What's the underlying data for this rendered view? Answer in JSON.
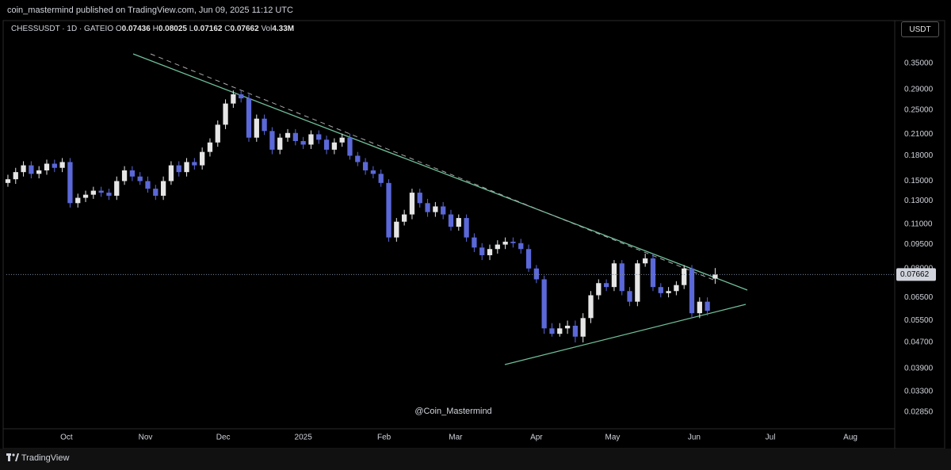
{
  "page": {
    "published": "coin_mastermind published on TradingView.com, Jun 09, 2025 11:12 UTC",
    "currency": "USDT",
    "watermark": "@Coin_Mastermind",
    "brand": "TradingView"
  },
  "chart_data": {
    "type": "candlestick",
    "symbol": "CHESSUSDT · 1D · GATEIO",
    "legend_labels": {
      "open": "O",
      "high": "H",
      "low": "L",
      "close": "C",
      "volume": "Vol"
    },
    "volume": "4.33M",
    "up_color": "#e6e6e6",
    "down_color": "#5b68d8",
    "log_scale": true,
    "grid": false,
    "open": [
      0.148,
      0.152,
      0.16,
      0.168,
      0.158,
      0.162,
      0.17,
      0.165,
      0.172,
      0.128,
      0.133,
      0.136,
      0.14,
      0.138,
      0.135,
      0.15,
      0.162,
      0.155,
      0.15,
      0.142,
      0.135,
      0.15,
      0.168,
      0.16,
      0.172,
      0.168,
      0.185,
      0.198,
      0.225,
      0.262,
      0.28,
      0.272,
      0.205,
      0.235,
      0.215,
      0.188,
      0.205,
      0.212,
      0.2,
      0.195,
      0.21,
      0.202,
      0.188,
      0.198,
      0.205,
      0.18,
      0.172,
      0.162,
      0.158,
      0.148,
      0.1,
      0.112,
      0.118,
      0.138,
      0.128,
      0.12,
      0.125,
      0.118,
      0.108,
      0.115,
      0.1,
      0.093,
      0.088,
      0.092,
      0.095,
      0.097,
      0.096,
      0.092,
      0.08,
      0.074,
      0.052,
      0.05,
      0.052,
      0.053,
      0.049,
      0.056,
      0.066,
      0.072,
      0.07,
      0.083,
      0.068,
      0.063,
      0.083,
      0.086,
      0.07,
      0.067,
      0.068,
      0.071,
      0.08,
      0.058,
      0.063,
      0.07436
    ],
    "high": [
      0.157,
      0.165,
      0.173,
      0.173,
      0.167,
      0.175,
      0.175,
      0.177,
      0.177,
      0.137,
      0.14,
      0.144,
      0.144,
      0.142,
      0.155,
      0.167,
      0.167,
      0.16,
      0.155,
      0.146,
      0.155,
      0.173,
      0.173,
      0.177,
      0.177,
      0.191,
      0.204,
      0.232,
      0.27,
      0.288,
      0.288,
      0.28,
      0.242,
      0.242,
      0.221,
      0.211,
      0.218,
      0.218,
      0.206,
      0.216,
      0.216,
      0.208,
      0.204,
      0.211,
      0.211,
      0.185,
      0.177,
      0.167,
      0.163,
      0.152,
      0.115,
      0.122,
      0.142,
      0.142,
      0.132,
      0.129,
      0.129,
      0.122,
      0.118,
      0.118,
      0.103,
      0.096,
      0.095,
      0.098,
      0.1,
      0.1,
      0.099,
      0.095,
      0.082,
      0.076,
      0.054,
      0.054,
      0.055,
      0.055,
      0.058,
      0.068,
      0.074,
      0.074,
      0.085,
      0.085,
      0.07,
      0.085,
      0.089,
      0.089,
      0.072,
      0.07,
      0.073,
      0.082,
      0.082,
      0.065,
      0.065,
      0.08025
    ],
    "low": [
      0.144,
      0.147,
      0.155,
      0.153,
      0.153,
      0.157,
      0.16,
      0.16,
      0.124,
      0.124,
      0.129,
      0.132,
      0.134,
      0.131,
      0.131,
      0.146,
      0.15,
      0.146,
      0.138,
      0.131,
      0.131,
      0.146,
      0.155,
      0.155,
      0.163,
      0.163,
      0.179,
      0.192,
      0.218,
      0.254,
      0.264,
      0.199,
      0.199,
      0.209,
      0.182,
      0.182,
      0.199,
      0.194,
      0.189,
      0.189,
      0.196,
      0.182,
      0.182,
      0.192,
      0.175,
      0.167,
      0.157,
      0.153,
      0.144,
      0.097,
      0.097,
      0.109,
      0.114,
      0.124,
      0.116,
      0.116,
      0.114,
      0.105,
      0.105,
      0.097,
      0.09,
      0.085,
      0.085,
      0.089,
      0.092,
      0.093,
      0.089,
      0.078,
      0.072,
      0.05,
      0.049,
      0.049,
      0.05,
      0.047,
      0.047,
      0.054,
      0.064,
      0.068,
      0.068,
      0.066,
      0.061,
      0.061,
      0.081,
      0.068,
      0.065,
      0.065,
      0.066,
      0.069,
      0.056,
      0.056,
      0.057,
      0.07162
    ],
    "close": [
      0.152,
      0.16,
      0.168,
      0.158,
      0.162,
      0.17,
      0.165,
      0.172,
      0.128,
      0.133,
      0.136,
      0.14,
      0.138,
      0.135,
      0.15,
      0.162,
      0.155,
      0.15,
      0.142,
      0.135,
      0.15,
      0.168,
      0.16,
      0.172,
      0.168,
      0.185,
      0.198,
      0.225,
      0.262,
      0.28,
      0.272,
      0.205,
      0.235,
      0.215,
      0.188,
      0.205,
      0.212,
      0.2,
      0.195,
      0.21,
      0.202,
      0.188,
      0.198,
      0.205,
      0.18,
      0.172,
      0.162,
      0.158,
      0.148,
      0.1,
      0.112,
      0.118,
      0.138,
      0.128,
      0.12,
      0.125,
      0.118,
      0.108,
      0.115,
      0.1,
      0.093,
      0.088,
      0.092,
      0.095,
      0.097,
      0.096,
      0.092,
      0.08,
      0.074,
      0.052,
      0.05,
      0.052,
      0.053,
      0.049,
      0.056,
      0.066,
      0.072,
      0.07,
      0.083,
      0.068,
      0.063,
      0.083,
      0.086,
      0.07,
      0.067,
      0.068,
      0.071,
      0.08,
      0.058,
      0.063,
      0.059,
      0.07662
    ],
    "xlim": [
      -0.2,
      114
    ],
    "xticks": [
      {
        "value": 7.54,
        "label": "Oct"
      },
      {
        "value": 17.7,
        "label": "Nov"
      },
      {
        "value": 27.7,
        "label": "Dec"
      },
      {
        "value": 38.0,
        "label": "2025"
      },
      {
        "value": 48.4,
        "label": "Feb"
      },
      {
        "value": 57.6,
        "label": "Mar"
      },
      {
        "value": 68.0,
        "label": "Apr"
      },
      {
        "value": 77.8,
        "label": "May"
      },
      {
        "value": 88.3,
        "label": "Jun"
      },
      {
        "value": 98.1,
        "label": "Jul"
      },
      {
        "value": 108.4,
        "label": "Aug"
      }
    ],
    "ylim": [
      0.0254,
      0.465
    ],
    "yticks": [
      {
        "value": 0.35,
        "label": "0.35000"
      },
      {
        "value": 0.29,
        "label": "0.29000"
      },
      {
        "value": 0.25,
        "label": "0.25000"
      },
      {
        "value": 0.21,
        "label": "0.21000"
      },
      {
        "value": 0.18,
        "label": "0.18000"
      },
      {
        "value": 0.15,
        "label": "0.15000"
      },
      {
        "value": 0.13,
        "label": "0.13000"
      },
      {
        "value": 0.11,
        "label": "0.11000"
      },
      {
        "value": 0.095,
        "label": "0.09500"
      },
      {
        "value": 0.08,
        "label": "0.08000"
      },
      {
        "value": 0.065,
        "label": "0.06500"
      },
      {
        "value": 0.055,
        "label": "0.05500"
      },
      {
        "value": 0.047,
        "label": "0.04700"
      },
      {
        "value": 0.039,
        "label": "0.03900"
      },
      {
        "value": 0.033,
        "label": "0.03300"
      },
      {
        "value": 0.0285,
        "label": "0.02850"
      }
    ]
  }
}
